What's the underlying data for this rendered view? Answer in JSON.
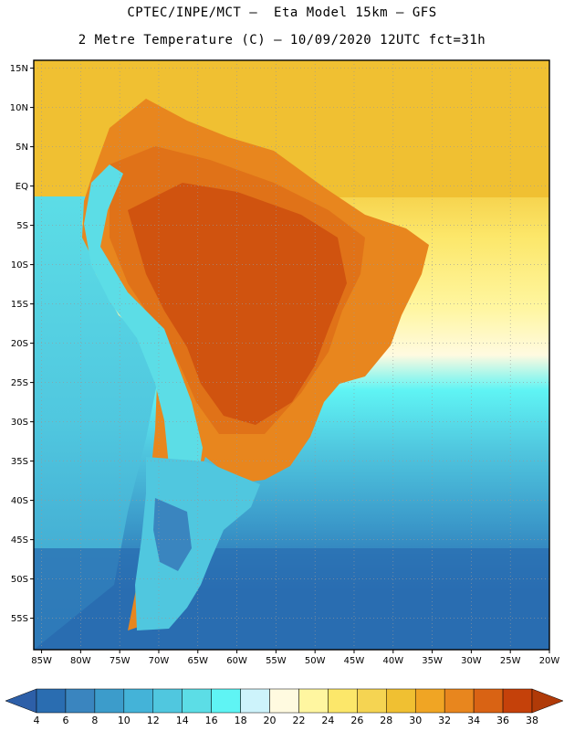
{
  "header": {
    "line1": "CPTEC/INPE/MCT –  Eta Model 15km – GFS",
    "line2": "2 Metre Temperature (C) – 10/09/2020 12UTC fct=31h"
  },
  "map": {
    "lat_labels": [
      "15N",
      "10N",
      "5N",
      "EQ",
      "5S",
      "10S",
      "15S",
      "20S",
      "25S",
      "30S",
      "35S",
      "40S",
      "45S",
      "50S",
      "55S"
    ],
    "lon_labels": [
      "85W",
      "80W",
      "75W",
      "70W",
      "65W",
      "60W",
      "55W",
      "50W",
      "45W",
      "40W",
      "35W",
      "30W",
      "25W",
      "20W"
    ],
    "lat_range": [
      16,
      -59
    ],
    "lon_range": [
      -86,
      -20
    ]
  },
  "colorbar": {
    "labels": [
      "4",
      "6",
      "8",
      "10",
      "12",
      "14",
      "16",
      "18",
      "20",
      "22",
      "24",
      "26",
      "28",
      "30",
      "32",
      "34",
      "36",
      "38"
    ],
    "colors": [
      "#2a6db1",
      "#3a85bf",
      "#3c9ccb",
      "#44b3d8",
      "#50c7df",
      "#5cdde6",
      "#5ff4f4",
      "#cdf3fb",
      "#fffae0",
      "#fff6a0",
      "#fce76a",
      "#f5d452",
      "#f0c032",
      "#f0a524",
      "#e8861e",
      "#d96314",
      "#c5410a"
    ],
    "low_arrow_color": "#2d5fa8",
    "high_arrow_color": "#b03a08"
  }
}
